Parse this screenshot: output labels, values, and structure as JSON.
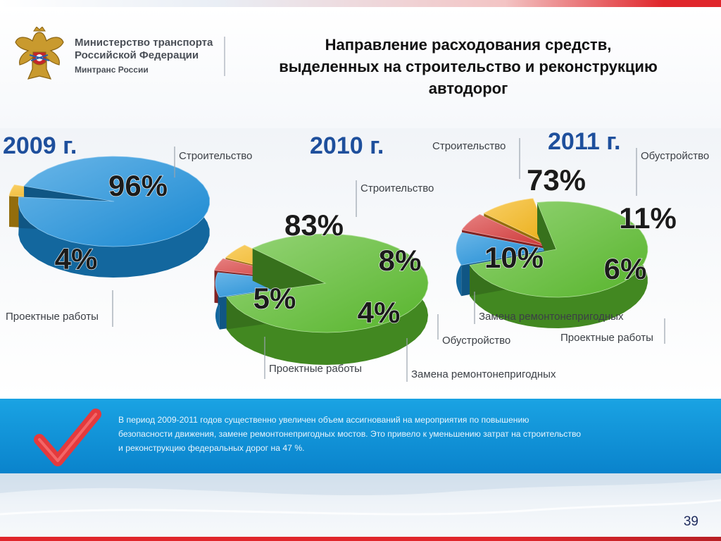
{
  "header": {
    "ministry_line1": "Министерство транспорта",
    "ministry_line2": "Российской Федерации",
    "ministry_short": "Минтранс России",
    "title_line1": "Направление расходования средств,",
    "title_line2": "выделенных на строительство и реконструкцию",
    "title_line3": "автодорог"
  },
  "colors": {
    "blue": "#1a8fdc",
    "green": "#5cbd2e",
    "yellow": "#f5b514",
    "red": "#d83a3a",
    "year_label": "#1e4f9c",
    "accent_red": "#e0262b",
    "info_band": "#0f91d6"
  },
  "chart_data": [
    {
      "type": "pie",
      "title": "2009 г.",
      "slices": [
        {
          "label": "Строительство",
          "value": 96,
          "display": "96%",
          "color": "#1a8fdc"
        },
        {
          "label": "Проектные работы",
          "value": 4,
          "display": "4%",
          "color": "#f5b514"
        }
      ]
    },
    {
      "type": "pie",
      "title": "2010 г.",
      "slices": [
        {
          "label": "Строительство",
          "value": 83,
          "display": "83%",
          "color": "#5cbd2e"
        },
        {
          "label": "Обустройство",
          "value": 8,
          "display": "8%",
          "color": "#1a8fdc"
        },
        {
          "label": "Замена ремонтонепригодных",
          "value": 4,
          "display": "4%",
          "color": "#d83a3a"
        },
        {
          "label": "Проектные работы",
          "value": 5,
          "display": "5%",
          "color": "#f5b514"
        }
      ]
    },
    {
      "type": "pie",
      "title": "2011 г.",
      "slices": [
        {
          "label": "Строительство",
          "value": 73,
          "display": "73%",
          "color": "#5cbd2e"
        },
        {
          "label": "Обустройство",
          "value": 11,
          "display": "11%",
          "color": "#1a8fdc"
        },
        {
          "label": "Проектные работы",
          "value": 6,
          "display": "6%",
          "color": "#d83a3a"
        },
        {
          "label": "Замена ремонтонепригодных",
          "value": 10,
          "display": "10%",
          "color": "#f5b514"
        }
      ]
    }
  ],
  "info": {
    "text_line1": "В период 2009-2011 годов существенно увеличен объем ассигнований на мероприятия по повышению",
    "text_line2": "безопасности движения, замене ремонтонепригодных мостов. Это привело к уменьшению затрат на строительство",
    "text_line3": "и реконструкцию федеральных дорог на 47 %."
  },
  "page_number": "39"
}
